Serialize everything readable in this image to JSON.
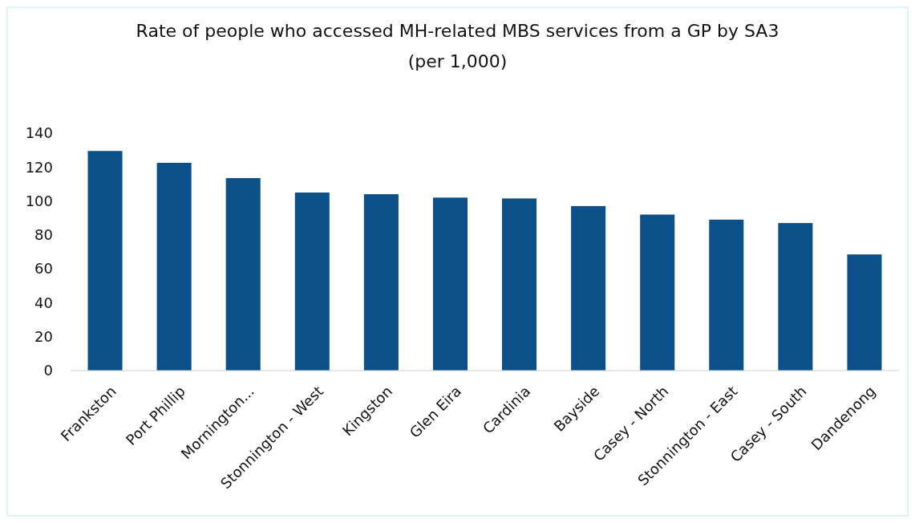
{
  "chart_data": {
    "type": "bar",
    "title": "Rate of people who accessed MH-related MBS services from a GP by SA3",
    "subtitle": "(per 1,000)",
    "categories": [
      "Frankston",
      "Port Phillip",
      "Mornington...",
      "Stonnington - West",
      "Kingston",
      "Glen Eira",
      "Cardinia",
      "Bayside",
      "Casey - North",
      "Stonnington - East",
      "Casey - South",
      "Dandenong"
    ],
    "values": [
      129.5,
      122.5,
      113.5,
      105,
      104,
      102,
      101.5,
      97,
      92,
      89,
      87,
      68.5
    ],
    "color": "#0b5088",
    "ylim": [
      0,
      140
    ],
    "yticks": [
      0,
      20,
      40,
      60,
      80,
      100,
      120,
      140
    ],
    "grid": false
  }
}
